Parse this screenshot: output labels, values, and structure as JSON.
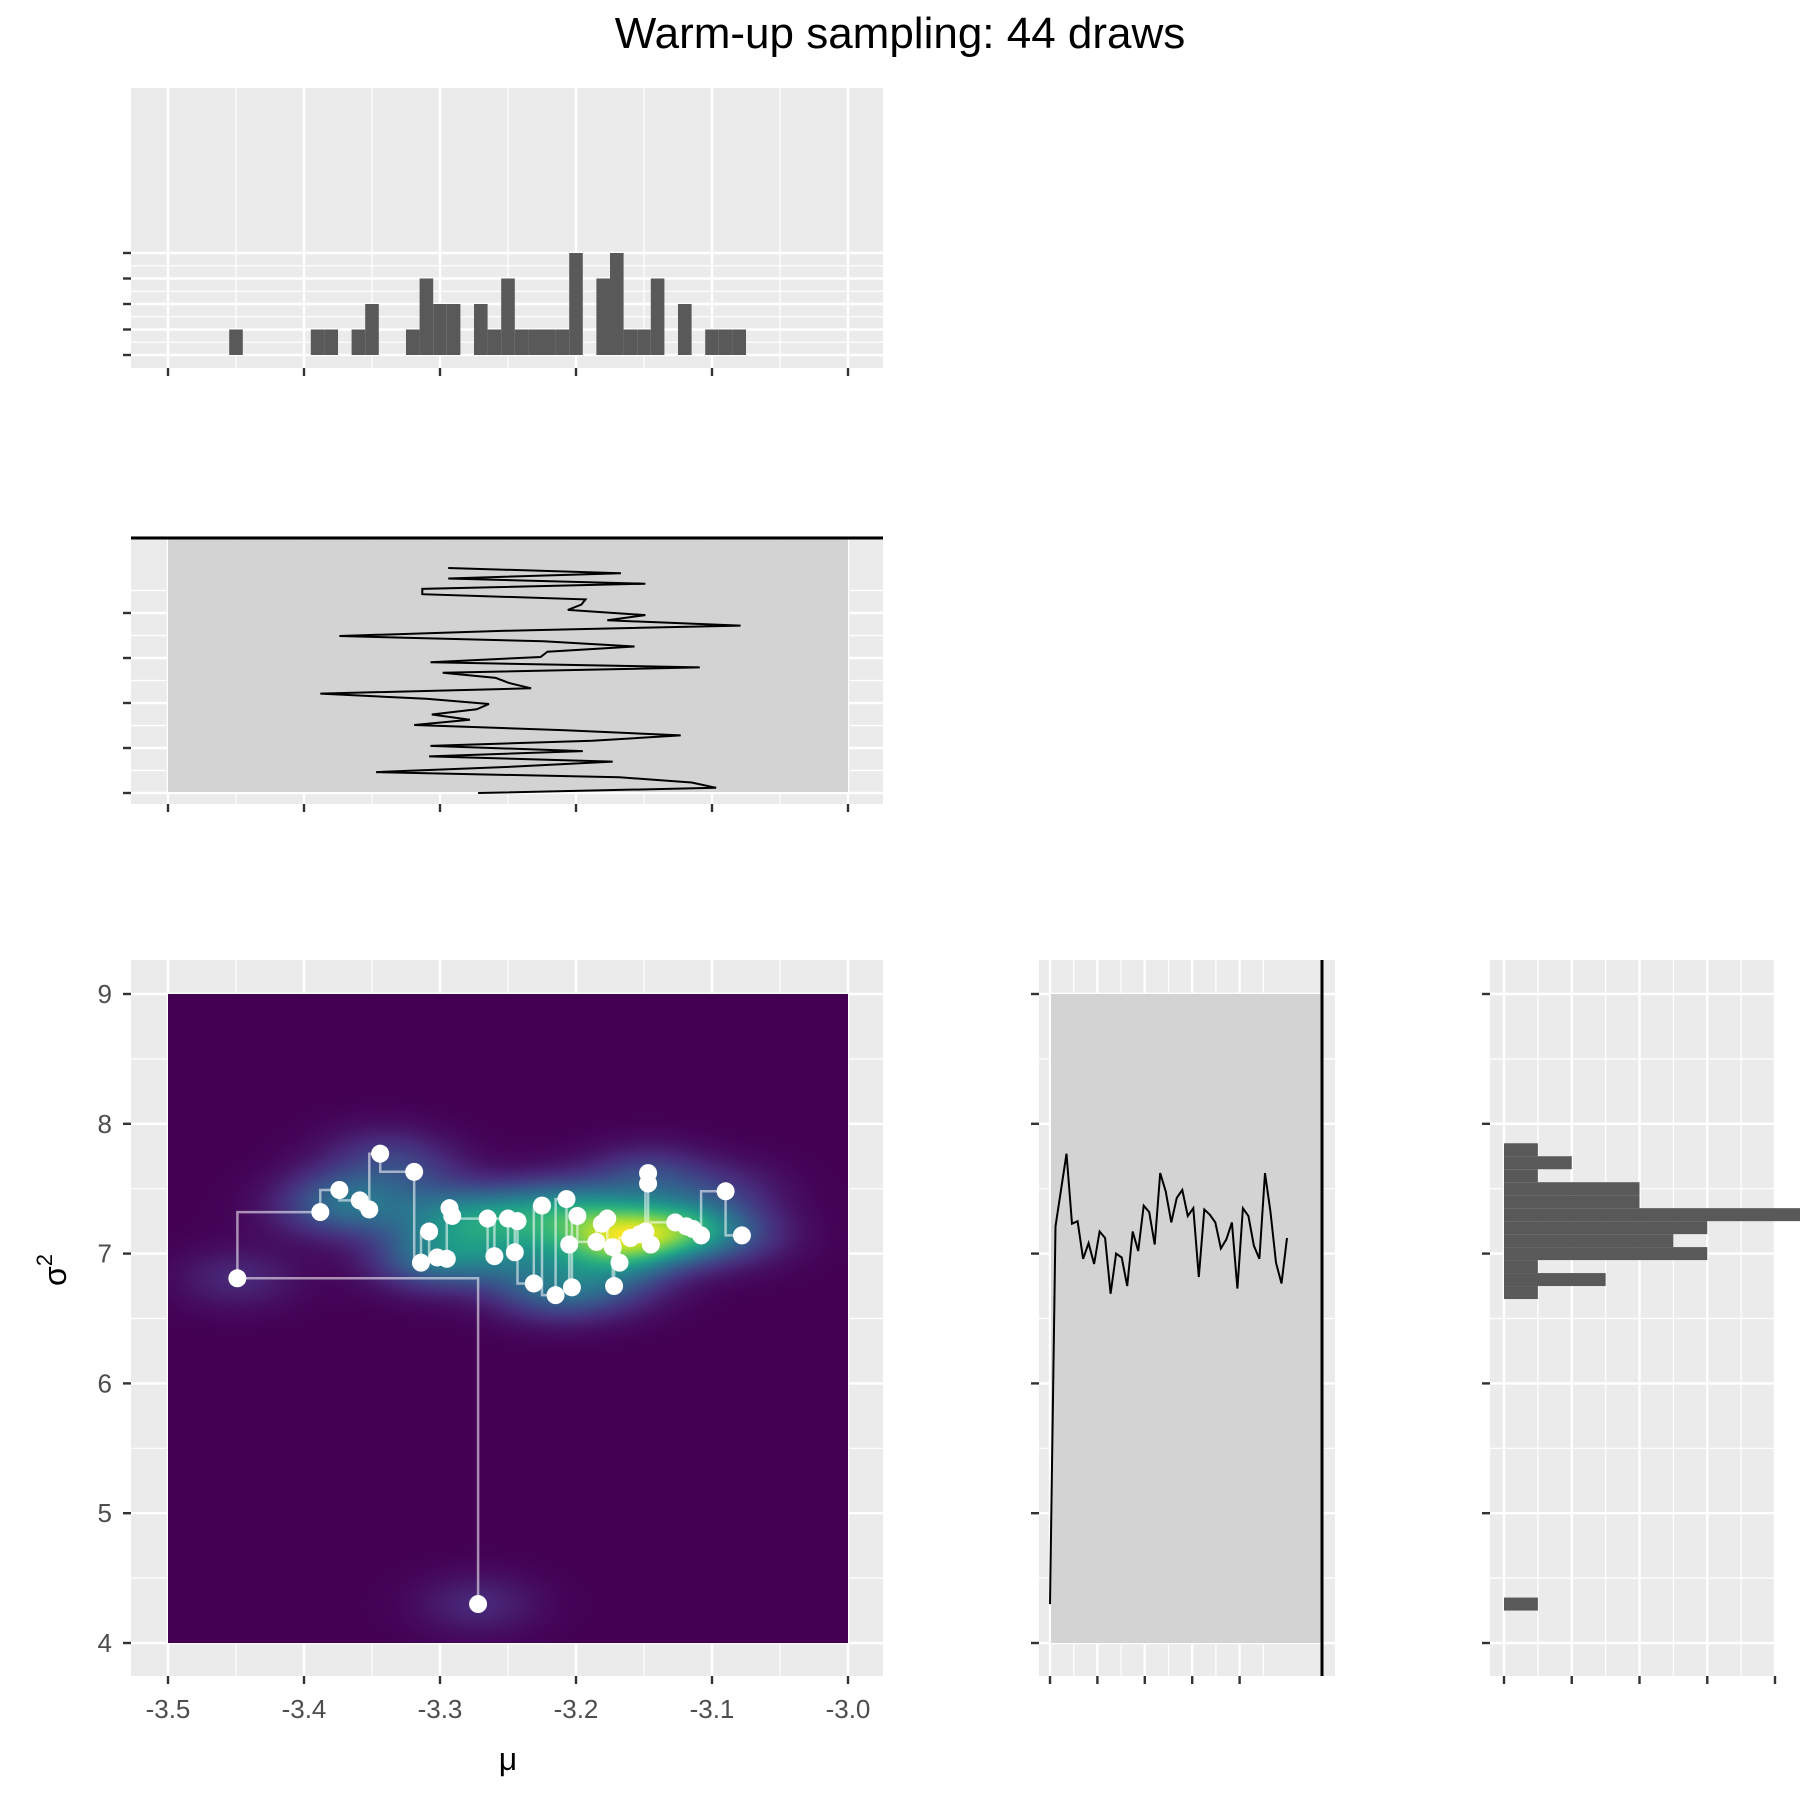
{
  "title": "Warm-up sampling: 44 draws",
  "colors": {
    "panel_bg": "#ebebeb",
    "grid": "#ffffff",
    "bar": "#595959",
    "trace_bg": "#d3d3d3",
    "density_low": "#440154",
    "density_high": "#fde725",
    "points": "#ffffff"
  },
  "chart_data": [
    {
      "name": "joint",
      "type": "scatter",
      "xlabel": "μ",
      "ylabel_base": "σ",
      "ylabel_sup": "2",
      "xlim": [
        -3.5,
        -3.0
      ],
      "ylim": [
        4.0,
        9.0
      ],
      "xticks": [
        "-3.5",
        "-3.4",
        "-3.3",
        "-3.2",
        "-3.1",
        "-3.0"
      ],
      "yticks": [
        "4",
        "5",
        "6",
        "7",
        "8",
        "9"
      ],
      "background": "density heatmap",
      "path": "step connections between successive draws",
      "points": [
        [
          -3.272,
          4.3
        ],
        [
          -3.449,
          6.81
        ],
        [
          -3.388,
          7.32
        ],
        [
          -3.374,
          7.49
        ],
        [
          -3.359,
          7.41
        ],
        [
          -3.352,
          7.34
        ],
        [
          -3.344,
          7.77
        ],
        [
          -3.319,
          7.63
        ],
        [
          -3.314,
          6.93
        ],
        [
          -3.308,
          7.17
        ],
        [
          -3.302,
          6.97
        ],
        [
          -3.295,
          6.96
        ],
        [
          -3.293,
          7.35
        ],
        [
          -3.291,
          7.29
        ],
        [
          -3.265,
          7.27
        ],
        [
          -3.26,
          6.98
        ],
        [
          -3.25,
          7.27
        ],
        [
          -3.245,
          7.01
        ],
        [
          -3.243,
          7.25
        ],
        [
          -3.231,
          6.77
        ],
        [
          -3.225,
          7.37
        ],
        [
          -3.215,
          6.68
        ],
        [
          -3.207,
          7.42
        ],
        [
          -3.205,
          7.07
        ],
        [
          -3.203,
          6.74
        ],
        [
          -3.199,
          7.29
        ],
        [
          -3.185,
          7.09
        ],
        [
          -3.181,
          7.23
        ],
        [
          -3.177,
          7.27
        ],
        [
          -3.173,
          7.05
        ],
        [
          -3.172,
          6.75
        ],
        [
          -3.168,
          6.93
        ],
        [
          -3.16,
          7.12
        ],
        [
          -3.153,
          7.15
        ],
        [
          -3.149,
          7.17
        ],
        [
          -3.147,
          7.62
        ],
        [
          -3.147,
          7.54
        ],
        [
          -3.145,
          7.07
        ],
        [
          -3.127,
          7.24
        ],
        [
          -3.119,
          7.21
        ],
        [
          -3.114,
          7.19
        ],
        [
          -3.108,
          7.14
        ],
        [
          -3.09,
          7.48
        ],
        [
          -3.078,
          7.14
        ]
      ]
    },
    {
      "name": "mu-histogram",
      "type": "bar",
      "xlim": [
        -3.5,
        -3.0
      ],
      "binwidth": 0.01,
      "bins": [
        {
          "x": -3.45,
          "count": 1
        },
        {
          "x": -3.39,
          "count": 1
        },
        {
          "x": -3.38,
          "count": 1
        },
        {
          "x": -3.36,
          "count": 1
        },
        {
          "x": -3.35,
          "count": 2
        },
        {
          "x": -3.32,
          "count": 1
        },
        {
          "x": -3.31,
          "count": 3
        },
        {
          "x": -3.3,
          "count": 2
        },
        {
          "x": -3.29,
          "count": 2
        },
        {
          "x": -3.27,
          "count": 2
        },
        {
          "x": -3.26,
          "count": 1
        },
        {
          "x": -3.25,
          "count": 3
        },
        {
          "x": -3.24,
          "count": 1
        },
        {
          "x": -3.23,
          "count": 1
        },
        {
          "x": -3.22,
          "count": 1
        },
        {
          "x": -3.21,
          "count": 1
        },
        {
          "x": -3.2,
          "count": 4
        },
        {
          "x": -3.18,
          "count": 3
        },
        {
          "x": -3.17,
          "count": 4
        },
        {
          "x": -3.16,
          "count": 1
        },
        {
          "x": -3.15,
          "count": 1
        },
        {
          "x": -3.14,
          "count": 3
        },
        {
          "x": -3.12,
          "count": 2
        },
        {
          "x": -3.1,
          "count": 1
        },
        {
          "x": -3.09,
          "count": 1
        },
        {
          "x": -3.08,
          "count": 1
        }
      ]
    },
    {
      "name": "mu-trace",
      "type": "line",
      "xlim": [
        -3.5,
        -3.0
      ],
      "iterations": 44,
      "values": [
        -3.272,
        -3.097,
        -3.115,
        -3.168,
        -3.347,
        -3.248,
        -3.173,
        -3.308,
        -3.195,
        -3.307,
        -3.188,
        -3.123,
        -3.208,
        -3.319,
        -3.278,
        -3.306,
        -3.273,
        -3.264,
        -3.31,
        -3.388,
        -3.233,
        -3.249,
        -3.259,
        -3.298,
        -3.109,
        -3.307,
        -3.226,
        -3.221,
        -3.157,
        -3.224,
        -3.374,
        -3.252,
        -3.079,
        -3.177,
        -3.149,
        -3.206,
        -3.196,
        -3.193,
        -3.313,
        -3.313,
        -3.149,
        -3.294,
        -3.167,
        -3.294
      ]
    },
    {
      "name": "sigma2-trace",
      "type": "line",
      "ylim": [
        4.0,
        9.0
      ],
      "iterations": 44,
      "values": [
        4.3,
        7.21,
        7.49,
        7.77,
        7.23,
        7.25,
        6.96,
        7.08,
        6.92,
        7.17,
        7.12,
        6.69,
        7.0,
        6.97,
        6.75,
        7.17,
        7.02,
        7.37,
        7.32,
        7.07,
        7.62,
        7.48,
        7.24,
        7.43,
        7.49,
        7.29,
        7.35,
        6.82,
        7.34,
        7.3,
        7.24,
        7.04,
        7.11,
        7.24,
        6.73,
        7.35,
        7.29,
        7.06,
        6.96,
        7.62,
        7.32,
        6.93,
        6.77,
        7.12
      ]
    },
    {
      "name": "sigma2-histogram",
      "type": "bar",
      "orientation": "horizontal",
      "ylim": [
        4.0,
        9.0
      ],
      "binwidth": 0.1,
      "bins": [
        {
          "y": 4.3,
          "count": 1
        },
        {
          "y": 6.7,
          "count": 1
        },
        {
          "y": 6.8,
          "count": 3
        },
        {
          "y": 6.9,
          "count": 1
        },
        {
          "y": 7.0,
          "count": 6
        },
        {
          "y": 7.1,
          "count": 5
        },
        {
          "y": 7.2,
          "count": 6
        },
        {
          "y": 7.3,
          "count": 9
        },
        {
          "y": 7.4,
          "count": 4
        },
        {
          "y": 7.5,
          "count": 4
        },
        {
          "y": 7.6,
          "count": 1
        },
        {
          "y": 7.7,
          "count": 2
        },
        {
          "y": 7.8,
          "count": 1
        }
      ]
    }
  ]
}
